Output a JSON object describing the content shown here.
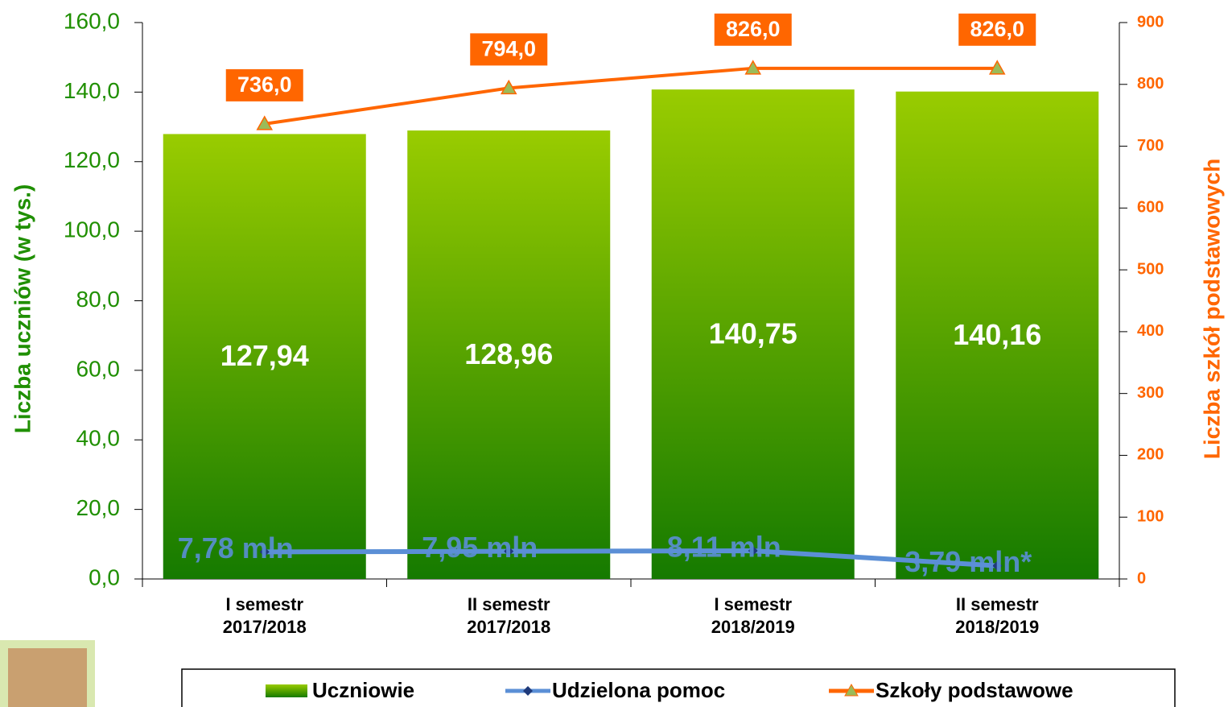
{
  "chart_data": {
    "type": "bar",
    "categories": [
      "I semestr 2017/2018",
      "II semestr 2017/2018",
      "I semestr 2018/2019",
      "II semestr 2018/2019"
    ],
    "series": [
      {
        "name": "Uczniowie",
        "type": "bar",
        "color": "#99cc00",
        "values": [
          127.94,
          128.96,
          140.75,
          140.16
        ],
        "value_labels": [
          "127,94",
          "128,96",
          "140,75",
          "140,16"
        ]
      },
      {
        "name": "Udzielona pomoc",
        "type": "line",
        "color": "#5b8fd6",
        "values": [
          7.78,
          7.95,
          8.11,
          3.79
        ],
        "value_labels": [
          "7,78 mln",
          "7,95 mln",
          "8,11 mln",
          "3,79 mln*"
        ]
      },
      {
        "name": "Szkoły podstawowe",
        "type": "line",
        "axis": "y2",
        "color": "#ff6600",
        "values": [
          736,
          794,
          826,
          826
        ],
        "value_labels": [
          "736,0",
          "794,0",
          "826,0",
          "826,0"
        ]
      }
    ],
    "y_label": "Liczba uczniów (w tys.)",
    "y2_label": "Liczba szkół podstawowych",
    "ylim": [
      0,
      160
    ],
    "yticks": [
      {
        "value": 0,
        "label": "0,0"
      },
      {
        "value": 20,
        "label": "20,0"
      },
      {
        "value": 40,
        "label": "40,0"
      },
      {
        "value": 60,
        "label": "60,0"
      },
      {
        "value": 80,
        "label": "80,0"
      },
      {
        "value": 100,
        "label": "100,0"
      },
      {
        "value": 120,
        "label": "120,0"
      },
      {
        "value": 140,
        "label": "140,0"
      },
      {
        "value": 160,
        "label": "160,0"
      }
    ],
    "y2lim": [
      0,
      900
    ],
    "y2ticks": [
      0,
      100,
      200,
      300,
      400,
      500,
      600,
      700,
      800,
      900
    ],
    "legend": "bottom"
  }
}
